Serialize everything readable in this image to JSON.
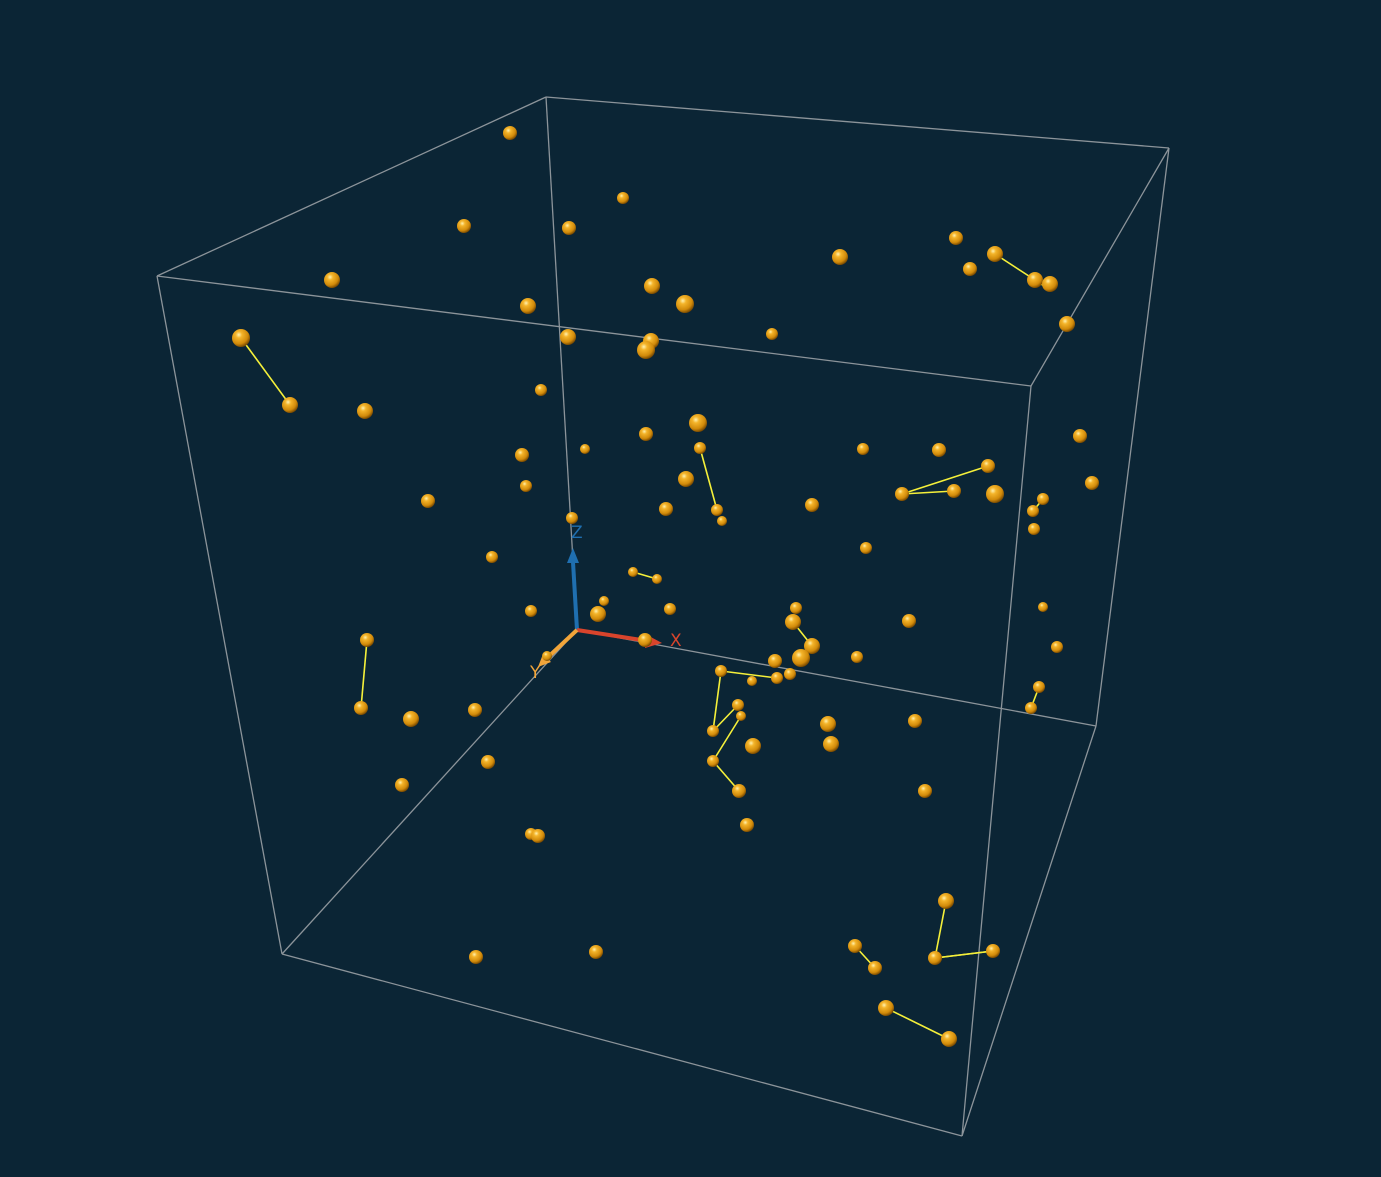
{
  "scene": {
    "background_color": "#0b2535",
    "box_color": "#8c949a",
    "particle_color": "#e09a12",
    "bond_color": "#f5f03a"
  },
  "axes": {
    "x": {
      "label": "X",
      "color": "#d9442c"
    },
    "y": {
      "label": "Y",
      "color": "#f2a53a"
    },
    "z": {
      "label": "Z",
      "color": "#1f6fb0"
    }
  }
}
